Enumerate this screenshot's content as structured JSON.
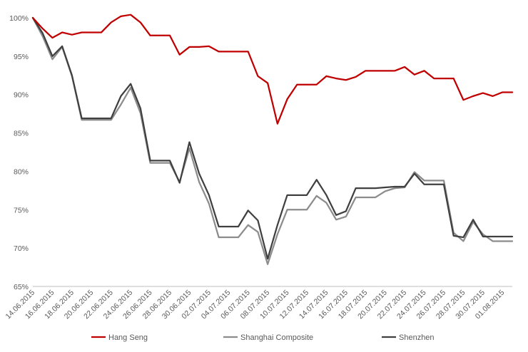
{
  "chart_data": {
    "type": "line",
    "title": "",
    "xlabel": "",
    "ylabel": "",
    "ylim": [
      65,
      100
    ],
    "yticks": [
      65,
      70,
      75,
      80,
      85,
      90,
      95,
      100
    ],
    "ytick_labels": [
      "65%",
      "70%",
      "75%",
      "80%",
      "85%",
      "90%",
      "95%",
      "100%"
    ],
    "grid": false,
    "legend_position": "bottom",
    "x": [
      "14.06.2015",
      "15.06.2015",
      "16.06.2015",
      "17.06.2015",
      "18.06.2015",
      "19.06.2015",
      "20.06.2015",
      "21.06.2015",
      "22.06.2015",
      "23.06.2015",
      "24.06.2015",
      "25.06.2015",
      "26.06.2015",
      "27.06.2015",
      "28.06.2015",
      "29.06.2015",
      "30.06.2015",
      "01.07.2015",
      "02.07.2015",
      "03.07.2015",
      "04.07.2015",
      "05.07.2015",
      "06.07.2015",
      "07.07.2015",
      "08.07.2015",
      "09.07.2015",
      "10.07.2015",
      "11.07.2015",
      "12.07.2015",
      "13.07.2015",
      "14.07.2015",
      "15.07.2015",
      "16.07.2015",
      "17.07.2015",
      "18.07.2015",
      "19.07.2015",
      "20.07.2015",
      "21.07.2015",
      "22.07.2015",
      "23.07.2015",
      "24.07.2015",
      "25.07.2015",
      "26.07.2015",
      "27.07.2015",
      "28.07.2015",
      "29.07.2015",
      "30.07.2015",
      "31.07.2015",
      "01.08.2015",
      "02.08.2015"
    ],
    "xtick_labels": [
      "14.06.2015",
      "16.06.2015",
      "18.06.2015",
      "20.06.2015",
      "22.06.2015",
      "24.06.2015",
      "26.06.2015",
      "28.06.2015",
      "30.06.2015",
      "02.07.2015",
      "04.07.2015",
      "06.07.2015",
      "08.07.2015",
      "10.07.2015",
      "12.07.2015",
      "14.07.2015",
      "16.07.2015",
      "18.07.2015",
      "20.07.2015",
      "22.07.2015",
      "24.07.2015",
      "26.07.2015",
      "28.07.2015",
      "30.07.2015",
      "01.08.2015"
    ],
    "series": [
      {
        "name": "Hang Seng",
        "color": "#c00000",
        "values": [
          100,
          98.6,
          97.4,
          98.1,
          97.8,
          98.1,
          98.1,
          98.1,
          99.4,
          100.2,
          100.4,
          99.4,
          97.7,
          97.7,
          97.7,
          95.2,
          96.2,
          96.2,
          96.3,
          95.6,
          95.6,
          95.6,
          95.6,
          92.4,
          91.5,
          86.2,
          89.4,
          91.3,
          91.3,
          91.3,
          92.4,
          92.1,
          91.9,
          92.3,
          93.1,
          93.1,
          93.1,
          93.1,
          93.6,
          92.6,
          93.1,
          92.1,
          92.1,
          92.1,
          89.3,
          89.8,
          90.2,
          89.8,
          90.3,
          90.3
        ]
      },
      {
        "name": "Shanghai Composite",
        "color": "#8c8c8c",
        "values": [
          100,
          97.6,
          94.6,
          96.2,
          92.4,
          86.7,
          86.7,
          86.7,
          86.7,
          88.7,
          90.9,
          87.6,
          81.1,
          81.1,
          81.1,
          78.6,
          83.0,
          78.6,
          75.8,
          71.4,
          71.4,
          71.4,
          73.0,
          72.1,
          67.9,
          71.8,
          75.0,
          75.0,
          75.0,
          76.8,
          75.9,
          73.7,
          74.1,
          76.6,
          76.6,
          76.6,
          77.4,
          77.8,
          77.9,
          79.9,
          78.8,
          78.8,
          78.8,
          72.0,
          70.9,
          73.4,
          71.8,
          70.9,
          70.9,
          70.9
        ]
      },
      {
        "name": "Shenzhen",
        "color": "#404040",
        "values": [
          100,
          98.0,
          95.0,
          96.3,
          92.5,
          86.9,
          86.9,
          86.9,
          86.9,
          89.8,
          91.4,
          88.2,
          81.4,
          81.4,
          81.4,
          78.5,
          83.8,
          79.7,
          76.9,
          72.8,
          72.8,
          72.8,
          74.9,
          73.6,
          68.6,
          73.0,
          76.9,
          76.9,
          76.9,
          78.9,
          76.9,
          74.3,
          74.8,
          77.8,
          77.8,
          77.8,
          77.9,
          78.0,
          78.0,
          79.7,
          78.3,
          78.3,
          78.3,
          71.6,
          71.4,
          73.7,
          71.5,
          71.5,
          71.5,
          71.5
        ]
      }
    ]
  }
}
